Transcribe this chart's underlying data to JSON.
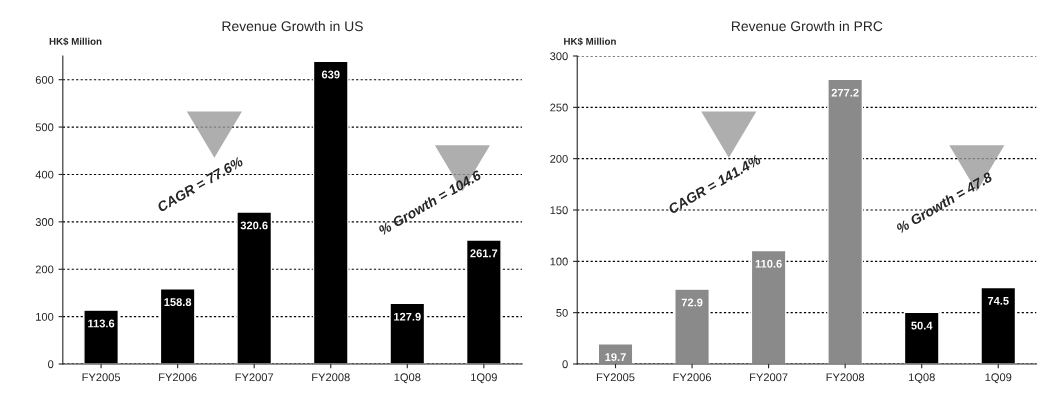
{
  "chart_data": [
    {
      "type": "bar",
      "title": "Revenue Growth in US",
      "ylabel": "HK$ Million",
      "categories": [
        "FY2005",
        "FY2006",
        "FY2007",
        "FY2008",
        "1Q08",
        "1Q09"
      ],
      "values": [
        113.6,
        158.8,
        320.6,
        639,
        127.9,
        261.7
      ],
      "colors": [
        "#000000",
        "#000000",
        "#000000",
        "#000000",
        "#000000",
        "#000000"
      ],
      "ylim": [
        0,
        650
      ],
      "yticks": [
        0,
        100,
        200,
        300,
        400,
        500,
        600
      ],
      "grid": "y",
      "data_labels": true,
      "annotations": [
        "CAGR = 77.6%",
        "% Growth = 104.6"
      ]
    },
    {
      "type": "bar",
      "title": "Revenue Growth in PRC",
      "ylabel": "HK$ Million",
      "categories": [
        "FY2005",
        "FY2006",
        "FY2007",
        "FY2008",
        "1Q08",
        "1Q09"
      ],
      "values": [
        19.7,
        72.9,
        110.6,
        277.2,
        50.4,
        74.5
      ],
      "colors": [
        "#8a8a8a",
        "#8a8a8a",
        "#8a8a8a",
        "#8a8a8a",
        "#000000",
        "#000000"
      ],
      "ylim": [
        0,
        300
      ],
      "yticks": [
        0,
        50,
        100,
        150,
        200,
        250,
        300
      ],
      "grid": "y",
      "data_labels": true,
      "annotations": [
        "CAGR = 141.4%",
        "% Growth = 47.8"
      ]
    }
  ]
}
